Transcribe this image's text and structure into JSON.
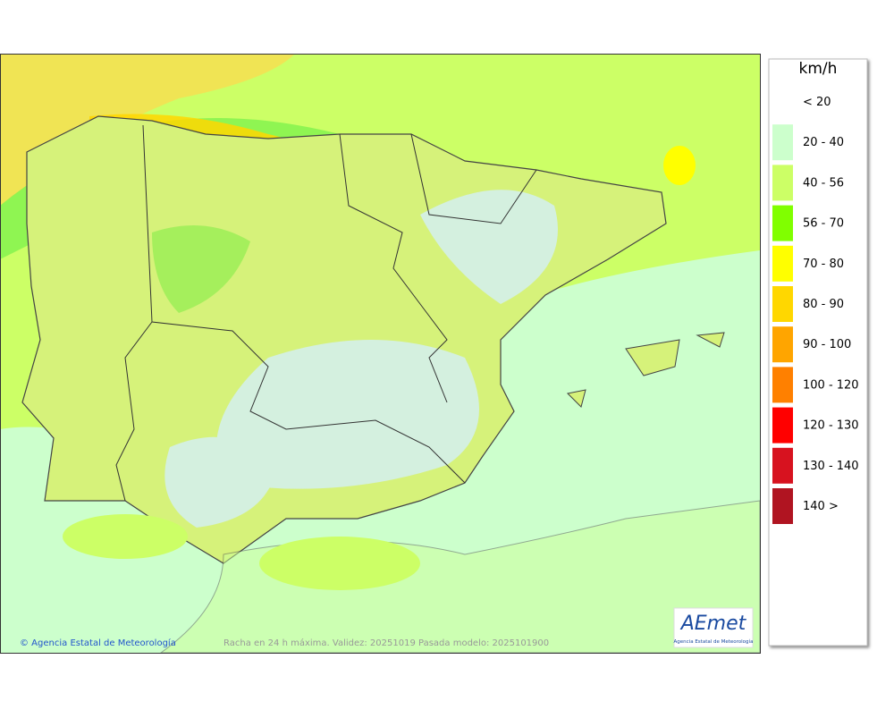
{
  "legend": {
    "title": "km/h",
    "items": [
      {
        "label": "< 20",
        "color": "#ffffff"
      },
      {
        "label": "20 - 40",
        "color": "#ccffcc"
      },
      {
        "label": "40 - 56",
        "color": "#ccff66"
      },
      {
        "label": "56 - 70",
        "color": "#80ff00"
      },
      {
        "label": "70 - 80",
        "color": "#ffff00"
      },
      {
        "label": "80 - 90",
        "color": "#ffd700"
      },
      {
        "label": "90 - 100",
        "color": "#ffa500"
      },
      {
        "label": "100 - 120",
        "color": "#ff8000"
      },
      {
        "label": "120 - 130",
        "color": "#ff0000"
      },
      {
        "label": "130 - 140",
        "color": "#d7121f"
      },
      {
        "label": "140 >",
        "color": "#b01421"
      }
    ]
  },
  "footer": {
    "credit": "© Agencia Estatal de Meteorología",
    "caption": "Racha en 24 h máxima. Validez: 20251019 Pasada modelo: 2025101900"
  },
  "logo": {
    "name": "AEmet",
    "subtitle": "Agencia Estatal de Meteorología"
  }
}
